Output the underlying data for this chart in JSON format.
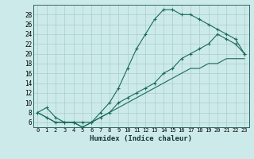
{
  "xlabel": "Humidex (Indice chaleur)",
  "bg_color": "#cceaea",
  "grid_color": "#aacccc",
  "line_color": "#1a6b5a",
  "xlim": [
    -0.5,
    23.5
  ],
  "ylim": [
    5,
    30
  ],
  "xticks": [
    0,
    1,
    2,
    3,
    4,
    5,
    6,
    7,
    8,
    9,
    10,
    11,
    12,
    13,
    14,
    15,
    16,
    17,
    18,
    19,
    20,
    21,
    22,
    23
  ],
  "yticks": [
    6,
    8,
    10,
    12,
    14,
    16,
    18,
    20,
    22,
    24,
    26,
    28
  ],
  "line1_x": [
    0,
    1,
    2,
    3,
    4,
    5,
    6,
    7,
    8,
    9,
    10,
    11,
    12,
    13,
    14,
    15,
    16,
    17,
    18,
    19,
    20,
    21,
    22,
    23
  ],
  "line1_y": [
    8,
    9,
    7,
    6,
    6,
    6,
    6,
    8,
    10,
    13,
    17,
    21,
    24,
    27,
    29,
    29,
    28,
    28,
    27,
    26,
    25,
    24,
    23,
    20
  ],
  "line2_x": [
    0,
    1,
    2,
    3,
    4,
    5,
    6,
    7,
    8,
    9,
    10,
    11,
    12,
    13,
    14,
    15,
    16,
    17,
    18,
    19,
    20,
    21,
    22,
    23
  ],
  "line2_y": [
    8,
    7,
    6,
    6,
    6,
    5,
    6,
    7,
    8,
    10,
    11,
    12,
    13,
    14,
    16,
    17,
    19,
    20,
    21,
    22,
    24,
    23,
    22,
    20
  ],
  "line3_x": [
    0,
    1,
    2,
    3,
    4,
    5,
    6,
    7,
    8,
    9,
    10,
    11,
    12,
    13,
    14,
    15,
    16,
    17,
    18,
    19,
    20,
    21,
    22,
    23
  ],
  "line3_y": [
    8,
    7,
    6,
    6,
    6,
    5,
    6,
    7,
    8,
    9,
    10,
    11,
    12,
    13,
    14,
    15,
    16,
    17,
    17,
    18,
    18,
    19,
    19,
    19
  ],
  "line2_has_markers_from": 5,
  "marker": "+"
}
